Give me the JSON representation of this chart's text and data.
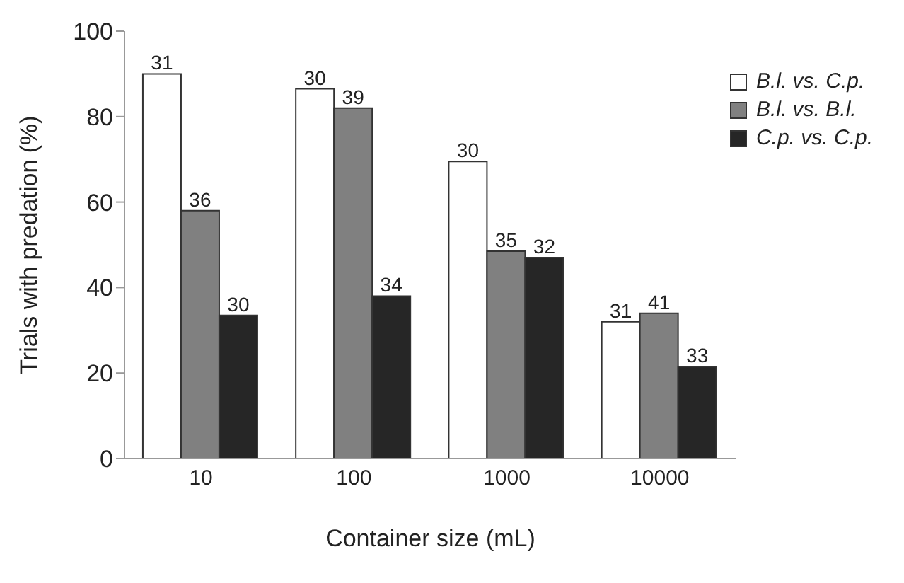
{
  "chart_data": {
    "type": "bar",
    "xlabel": "Container size (mL)",
    "ylabel": "Trials with predation (%)",
    "categories": [
      "10",
      "100",
      "1000",
      "10000"
    ],
    "series": [
      {
        "name": "B.l. vs. C.p.",
        "color": "#ffffff",
        "values": [
          90,
          86.5,
          69.5,
          32
        ]
      },
      {
        "name": "B.l. vs. B.l.",
        "color": "#808080",
        "values": [
          58,
          82,
          48.5,
          34
        ]
      },
      {
        "name": "C.p. vs. C.p.",
        "color": "#262626",
        "values": [
          33.5,
          38,
          47,
          21.5
        ]
      }
    ],
    "annotations": [
      "31",
      "36",
      "30",
      "30",
      "39",
      "34",
      "30",
      "35",
      "32",
      "31",
      "41",
      "33"
    ],
    "ylim": [
      0,
      100
    ],
    "yticks": [
      0,
      20,
      40,
      60,
      80,
      100
    ],
    "grid": false,
    "legend": "top right"
  }
}
